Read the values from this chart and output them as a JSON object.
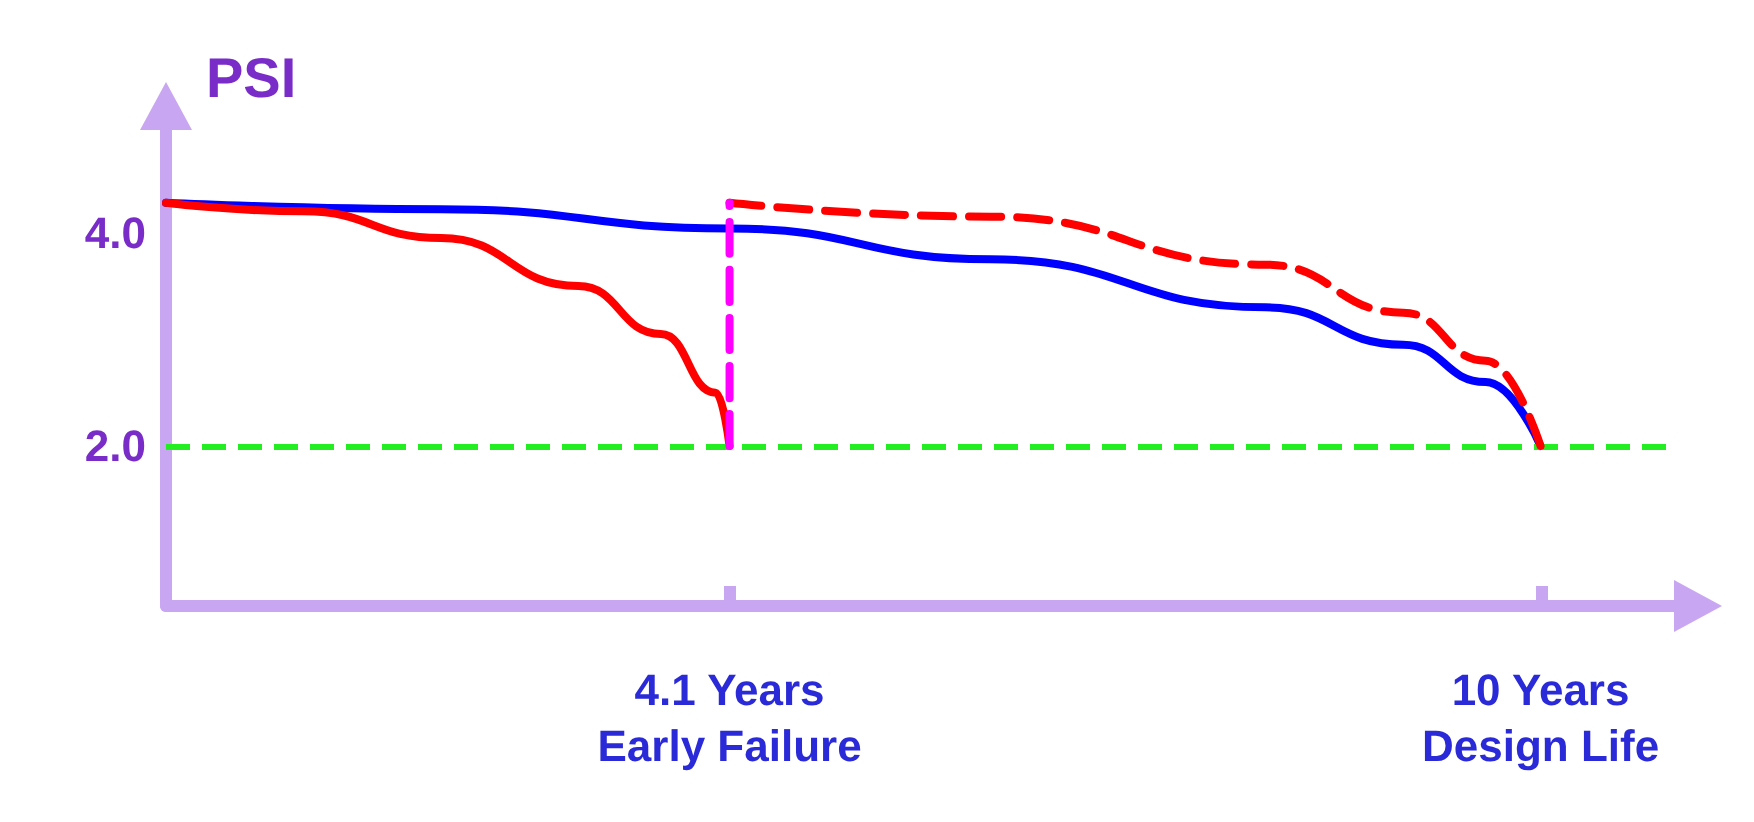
{
  "chart_data": {
    "type": "line",
    "ylabel": "PSI",
    "xlim": [
      0,
      11
    ],
    "ylim": [
      0.5,
      5
    ],
    "xticks": [
      {
        "value": 4.1,
        "label": "4.1 Years\nEarly Failure"
      },
      {
        "value": 10,
        "label": "10 Years\nDesign Life"
      }
    ],
    "yticks": [
      {
        "value": 2,
        "label": "2.0"
      },
      {
        "value": 4,
        "label": "4.0"
      }
    ],
    "grid": false,
    "marker": "none",
    "series": [
      {
        "color": "#0000ff",
        "line_style": "solid",
        "x": [
          0,
          2,
          4.1,
          6,
          8,
          9,
          9.6,
          10
        ],
        "values": [
          4.28,
          4.22,
          4.04,
          3.75,
          3.3,
          2.95,
          2.6,
          2.0
        ]
      },
      {
        "color": "#ff0000",
        "line_style": "solid",
        "x": [
          0,
          1,
          2,
          3,
          3.6,
          4.0,
          4.1
        ],
        "values": [
          4.28,
          4.2,
          3.95,
          3.5,
          3.05,
          2.5,
          2.0
        ]
      },
      {
        "color": "#ff0000",
        "line_style": "dashed",
        "x": [
          4.1,
          6,
          8,
          9,
          9.6,
          10
        ],
        "values": [
          4.28,
          4.15,
          3.7,
          3.25,
          2.8,
          2.0
        ]
      },
      {
        "color": "#ff00ff",
        "line_style": "dashed",
        "x": [
          4.1,
          4.1
        ],
        "values": [
          2.0,
          4.28
        ]
      }
    ],
    "ref_lines": [
      {
        "axis": "y",
        "value": 2.0,
        "color": "#22ee22",
        "line_style": "dashed"
      }
    ]
  }
}
